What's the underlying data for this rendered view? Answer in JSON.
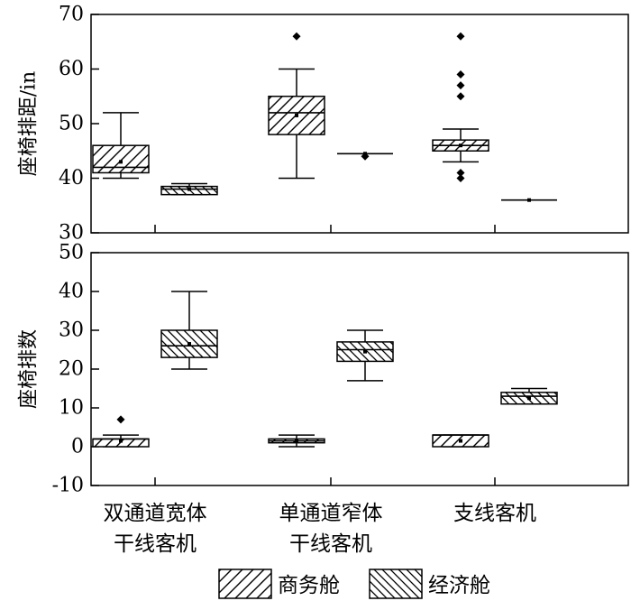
{
  "chart_data": [
    {
      "type": "box",
      "ylabel": "座椅排距/in",
      "ylim": [
        30,
        70
      ],
      "yticks": [
        30,
        40,
        50,
        60,
        70
      ],
      "categories": [
        "双通道宽体干线客机",
        "单通道窄体干线客机",
        "支线客机"
      ],
      "series": [
        {
          "name": "商务舱",
          "boxes": [
            {
              "min": 40,
              "q1": 41,
              "median": 42,
              "q3": 46,
              "max": 52,
              "mean": 43,
              "outliers": []
            },
            {
              "min": 40,
              "q1": 48,
              "median": 52,
              "q3": 55,
              "max": 60,
              "mean": 51.5,
              "outliers": [
                66
              ]
            },
            {
              "min": 43,
              "q1": 45,
              "median": 46,
              "q3": 47,
              "max": 49,
              "mean": 46,
              "outliers": [
                40,
                41,
                55,
                57,
                59,
                66
              ]
            }
          ]
        },
        {
          "name": "经济舱",
          "boxes": [
            {
              "min": 37,
              "q1": 37,
              "median": 38,
              "q3": 38.5,
              "max": 39,
              "mean": 38,
              "outliers": []
            },
            {
              "min": 44.5,
              "q1": 44.5,
              "median": 44.5,
              "q3": 44.5,
              "max": 44.5,
              "mean": 44.5,
              "outliers": [
                44
              ]
            },
            {
              "min": 36,
              "q1": 36,
              "median": 36,
              "q3": 36,
              "max": 36,
              "mean": 36,
              "outliers": []
            }
          ]
        }
      ]
    },
    {
      "type": "box",
      "ylabel": "座椅排数",
      "ylim": [
        -10,
        50
      ],
      "yticks": [
        -10,
        0,
        10,
        20,
        30,
        40,
        50
      ],
      "categories": [
        "双通道宽体干线客机",
        "单通道窄体干线客机",
        "支线客机"
      ],
      "category_labels": [
        [
          "双通道宽体",
          "干线客机"
        ],
        [
          "单通道窄体",
          "干线客机"
        ],
        [
          "支线客机"
        ]
      ],
      "series": [
        {
          "name": "商务舱",
          "boxes": [
            {
              "min": 0,
              "q1": 0,
              "median": 2,
              "q3": 2,
              "max": 3,
              "mean": 1.5,
              "outliers": [
                7
              ]
            },
            {
              "min": 0,
              "q1": 1,
              "median": 1.5,
              "q3": 2,
              "max": 3,
              "mean": 1.5,
              "outliers": []
            },
            {
              "min": 0,
              "q1": 0,
              "median": 3,
              "q3": 3,
              "max": 3,
              "mean": 1.5,
              "outliers": []
            }
          ]
        },
        {
          "name": "经济舱",
          "boxes": [
            {
              "min": 20,
              "q1": 23,
              "median": 26,
              "q3": 30,
              "max": 40,
              "mean": 26.5,
              "outliers": []
            },
            {
              "min": 17,
              "q1": 22,
              "median": 25,
              "q3": 27,
              "max": 30,
              "mean": 24.5,
              "outliers": []
            },
            {
              "min": 11,
              "q1": 11,
              "median": 13,
              "q3": 14,
              "max": 15,
              "mean": 12.5,
              "outliers": []
            }
          ]
        }
      ]
    }
  ],
  "legend": {
    "items": [
      {
        "label": "商务舱",
        "pattern": "hatch-forward"
      },
      {
        "label": "经济舱",
        "pattern": "hatch-backward"
      }
    ]
  }
}
